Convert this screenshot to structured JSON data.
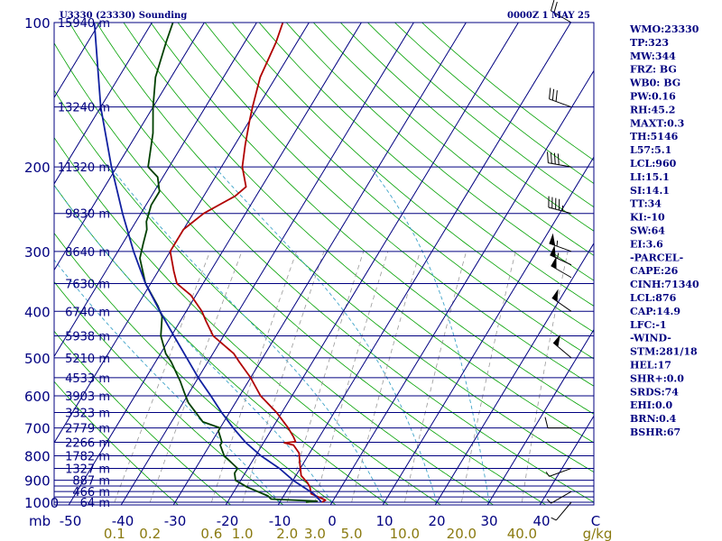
{
  "header": {
    "station": "U3330 (23330) Sounding",
    "time": "0000Z  1 MAY 25"
  },
  "indices": [
    "WMO:23330",
    "TP:323",
    "MW:344",
    "FRZ: BG",
    "WB0: BG",
    "PW:0.16",
    "RH:45.2",
    "MAXT:0.3",
    "TH:5146",
    "L57:5.1",
    "LCL:960",
    "LI:15.1",
    "SI:14.1",
    "TT:34",
    "KI:-10",
    "SW:64",
    "EI:3.6",
    "-PARCEL-",
    "CAPE:26",
    "CINH:71340",
    "LCL:876",
    "CAP:14.9",
    "LFC:-1",
    "-WIND-",
    "STM:281/18",
    "HEL:17",
    "SHR+:0.0",
    "SRDS:74",
    "EHI:0.0",
    "BRN:0.4",
    "BSHR:67"
  ],
  "colors": {
    "frame": "#000080",
    "isobar": "#000080",
    "isotherm": "#000080",
    "dry_adiabat": "#00a000",
    "moist_adiabat": "#3da3c8",
    "mixing_ratio": "#999999",
    "temperature": "#b00000",
    "dewpoint": "#004000",
    "parcel": "#1020a0",
    "wind": "#000000"
  },
  "chart_data": {
    "type": "skew-t",
    "pressure_axis": {
      "unit": "mb",
      "ticks": [
        "100",
        "200",
        "300",
        "400",
        "500",
        "600",
        "700",
        "800",
        "900",
        "1000"
      ],
      "range_mb": [
        100,
        1000
      ],
      "scale": "log"
    },
    "height_labels": [
      {
        "p": 100,
        "label": "15940 m"
      },
      {
        "p": 150,
        "label": "13240 m"
      },
      {
        "p": 200,
        "label": "11320 m"
      },
      {
        "p": 250,
        "label": "9830 m"
      },
      {
        "p": 300,
        "label": "8640 m"
      },
      {
        "p": 350,
        "label": "7630 m"
      },
      {
        "p": 400,
        "label": "6740 m"
      },
      {
        "p": 450,
        "label": "5938 m"
      },
      {
        "p": 500,
        "label": "5210 m"
      },
      {
        "p": 550,
        "label": "4533 m"
      },
      {
        "p": 600,
        "label": "3903 m"
      },
      {
        "p": 650,
        "label": "3323 m"
      },
      {
        "p": 700,
        "label": "2779 m"
      },
      {
        "p": 750,
        "label": "2266 m"
      },
      {
        "p": 800,
        "label": "1782 m"
      },
      {
        "p": 850,
        "label": "1327 m"
      },
      {
        "p": 900,
        "label": "887 m"
      },
      {
        "p": 950,
        "label": "466 m"
      },
      {
        "p": 1000,
        "label": "64 m"
      }
    ],
    "temperature_axis": {
      "unit": "C",
      "ticks": [
        -50,
        -40,
        -30,
        -20,
        -10,
        0,
        10,
        20,
        30,
        40
      ],
      "tick_labels": [
        "-50",
        "-40",
        "-30",
        "-20",
        "-10",
        "0",
        "10",
        "20",
        "30",
        "40"
      ],
      "unit_label": "C"
    },
    "mixing_ratio_axis": {
      "unit": "g/kg",
      "values": [
        0.1,
        0.2,
        0.6,
        1.0,
        2.0,
        3.0,
        5.0,
        10.0,
        20.0,
        40.0
      ],
      "tick_labels": [
        "0.1",
        "0.2",
        "0.6",
        "1.0",
        "2.0",
        "3.0",
        "5.0",
        "10.0",
        "20.0",
        "40.0"
      ]
    },
    "series": [
      {
        "name": "temperature",
        "points": [
          [
            1000,
            -2
          ],
          [
            990,
            -1.5
          ],
          [
            960,
            -5
          ],
          [
            930,
            -6
          ],
          [
            910,
            -7
          ],
          [
            880,
            -9
          ],
          [
            850,
            -10
          ],
          [
            820,
            -11
          ],
          [
            790,
            -12
          ],
          [
            760,
            -14
          ],
          [
            752,
            -16
          ],
          [
            748,
            -14
          ],
          [
            730,
            -15
          ],
          [
            700,
            -17
          ],
          [
            650,
            -21
          ],
          [
            600,
            -26
          ],
          [
            550,
            -30
          ],
          [
            510,
            -34
          ],
          [
            490,
            -36
          ],
          [
            450,
            -42
          ],
          [
            420,
            -45
          ],
          [
            400,
            -47
          ],
          [
            370,
            -51
          ],
          [
            350,
            -55
          ],
          [
            330,
            -57
          ],
          [
            300,
            -60
          ],
          [
            270,
            -60
          ],
          [
            250,
            -58
          ],
          [
            230,
            -54
          ],
          [
            220,
            -53
          ],
          [
            200,
            -56
          ],
          [
            180,
            -58
          ],
          [
            160,
            -60
          ],
          [
            150,
            -61
          ],
          [
            130,
            -63
          ],
          [
            110,
            -64
          ],
          [
            100,
            -65
          ]
        ]
      },
      {
        "name": "dewpoint",
        "points": [
          [
            1000,
            -5
          ],
          [
            995,
            -3
          ],
          [
            985,
            -12
          ],
          [
            970,
            -13
          ],
          [
            930,
            -18
          ],
          [
            900,
            -21
          ],
          [
            870,
            -22
          ],
          [
            850,
            -22
          ],
          [
            800,
            -26
          ],
          [
            760,
            -28
          ],
          [
            750,
            -28
          ],
          [
            710,
            -30
          ],
          [
            700,
            -30
          ],
          [
            680,
            -34
          ],
          [
            620,
            -39
          ],
          [
            590,
            -41
          ],
          [
            560,
            -43
          ],
          [
            510,
            -47
          ],
          [
            490,
            -49
          ],
          [
            450,
            -52
          ],
          [
            410,
            -54
          ],
          [
            390,
            -56
          ],
          [
            350,
            -61
          ],
          [
            310,
            -65
          ],
          [
            290,
            -66
          ],
          [
            270,
            -67
          ],
          [
            260,
            -68
          ],
          [
            240,
            -69
          ],
          [
            225,
            -69
          ],
          [
            210,
            -71
          ],
          [
            200,
            -74
          ],
          [
            170,
            -77
          ],
          [
            150,
            -80
          ],
          [
            130,
            -83
          ],
          [
            110,
            -85
          ],
          [
            100,
            -86
          ]
        ]
      },
      {
        "name": "parcel",
        "points": [
          [
            1000,
            -2
          ],
          [
            960,
            -4.5
          ],
          [
            900,
            -10
          ],
          [
            850,
            -14
          ],
          [
            800,
            -19
          ],
          [
            750,
            -23.5
          ],
          [
            700,
            -27.5
          ],
          [
            650,
            -31.5
          ],
          [
            600,
            -35.5
          ],
          [
            550,
            -40
          ],
          [
            500,
            -44.5
          ],
          [
            450,
            -49.5
          ],
          [
            400,
            -55
          ],
          [
            350,
            -61
          ],
          [
            300,
            -67
          ],
          [
            250,
            -73.5
          ],
          [
            200,
            -81
          ],
          [
            150,
            -90
          ],
          [
            100,
            -101
          ]
        ]
      }
    ],
    "wind_barbs": [
      {
        "p": 100,
        "dir": 300,
        "spd": 20
      },
      {
        "p": 150,
        "dir": 290,
        "spd": 30
      },
      {
        "p": 200,
        "dir": 280,
        "spd": 40
      },
      {
        "p": 250,
        "dir": 285,
        "spd": 45
      },
      {
        "p": 300,
        "dir": 290,
        "spd": 55
      },
      {
        "p": 320,
        "dir": 295,
        "spd": 55
      },
      {
        "p": 340,
        "dir": 300,
        "spd": 50
      },
      {
        "p": 400,
        "dir": 305,
        "spd": 50
      },
      {
        "p": 500,
        "dir": 310,
        "spd": 50
      },
      {
        "p": 700,
        "dir": 270,
        "spd": 10
      },
      {
        "p": 850,
        "dir": 250,
        "spd": 5
      },
      {
        "p": 950,
        "dir": 240,
        "spd": 5
      },
      {
        "p": 1000,
        "dir": 220,
        "spd": 5
      }
    ],
    "isobars_mb": [
      100,
      150,
      200,
      250,
      300,
      350,
      400,
      450,
      500,
      550,
      600,
      650,
      700,
      750,
      800,
      850,
      900,
      925,
      950,
      975,
      1000
    ],
    "isotherms_c": [
      -150,
      -140,
      -130,
      -120,
      -110,
      -100,
      -90,
      -80,
      -70,
      -60,
      -50,
      -40,
      -30,
      -20,
      -10,
      0,
      10,
      20,
      30,
      40
    ],
    "dry_adiabats_c": [
      -30,
      -20,
      -10,
      0,
      10,
      20,
      30,
      40,
      50,
      60,
      70,
      80,
      90,
      100,
      110,
      120,
      130,
      140,
      150,
      160,
      170,
      180
    ],
    "moist_adiabats_c": [
      -10,
      0,
      10,
      20,
      30
    ],
    "mixing_ratio_lines_gkg": [
      0.1,
      0.2,
      0.6,
      1.0,
      2.0,
      3.0,
      5.0,
      10.0,
      20.0,
      40.0
    ]
  }
}
